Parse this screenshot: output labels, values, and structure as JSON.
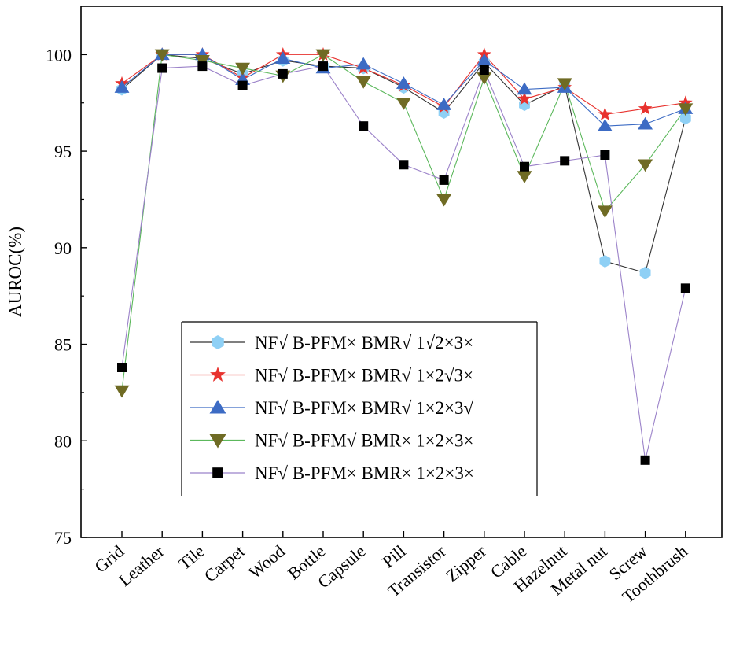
{
  "chart_data": {
    "type": "line",
    "title": "",
    "xlabel": "",
    "ylabel": "AUROC(%)",
    "ylim": [
      75,
      102.5
    ],
    "yticks": [
      75,
      80,
      85,
      90,
      95,
      100
    ],
    "categories": [
      "Grid",
      "Leather",
      "Tile",
      "Carpet",
      "Wood",
      "Bottle",
      "Capsule",
      "Pill",
      "Transistor",
      "Zipper",
      "Cable",
      "Hazelnut",
      "Metal nut",
      "Screw",
      "Toothbrush"
    ],
    "legend_position": "lower-right",
    "series": [
      {
        "name": "NF√ B-PFM× BMR√ 1√2×3×",
        "marker": "hexagon",
        "marker_color": "#8fd0f5",
        "line_color": "#333333",
        "values": [
          98.2,
          100.0,
          99.8,
          99.0,
          99.7,
          99.4,
          99.3,
          98.3,
          97.0,
          99.6,
          97.4,
          98.4,
          89.3,
          88.7,
          96.7
        ]
      },
      {
        "name": "NF√ B-PFM× BMR√ 1×2√3×",
        "marker": "star",
        "marker_color": "#e8322e",
        "line_color": "#e8322e",
        "values": [
          98.5,
          100.0,
          100.0,
          98.8,
          100.0,
          100.0,
          99.3,
          98.4,
          97.3,
          100.0,
          97.7,
          98.3,
          96.9,
          97.2,
          97.5
        ]
      },
      {
        "name": "NF√ B-PFM× BMR√ 1×2×3√",
        "marker": "triangle-up",
        "marker_color": "#3c6bc4",
        "line_color": "#3c6bc4",
        "values": [
          98.3,
          100.0,
          100.0,
          98.7,
          99.8,
          99.3,
          99.5,
          98.5,
          97.4,
          99.7,
          98.2,
          98.3,
          96.3,
          96.4,
          97.2
        ]
      },
      {
        "name": "NF√ B-PFM√ BMR× 1×2×3×",
        "marker": "triangle-down",
        "marker_color": "#6f6b24",
        "line_color": "#5cb85c",
        "values": [
          82.6,
          100.0,
          99.7,
          99.3,
          98.9,
          100.0,
          98.6,
          97.5,
          92.5,
          98.8,
          93.7,
          98.5,
          91.9,
          94.3,
          97.2
        ]
      },
      {
        "name": "NF√ B-PFM× BMR× 1×2×3×",
        "marker": "square",
        "marker_color": "#000000",
        "line_color": "#9b82c9",
        "values": [
          83.8,
          99.3,
          99.4,
          98.4,
          99.0,
          99.4,
          96.3,
          94.3,
          93.5,
          99.2,
          94.2,
          94.5,
          94.8,
          79.0,
          87.9
        ]
      }
    ]
  }
}
